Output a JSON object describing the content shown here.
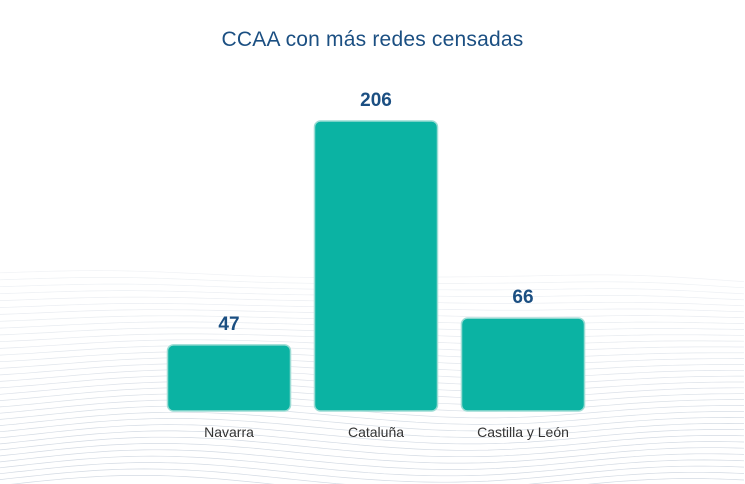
{
  "chart_data": {
    "type": "bar",
    "title": "CCAA con más redes censadas",
    "categories": [
      "Navarra",
      "Cataluña",
      "Castilla y León"
    ],
    "values": [
      47,
      206,
      66
    ],
    "data_labels": [
      "47",
      "206",
      "66"
    ],
    "xlabel": "",
    "ylabel": "",
    "ylim": [
      0,
      206
    ],
    "grid": false,
    "legend": "none",
    "bar_color": "#0bb3a3",
    "label_color": "#1b4f82"
  }
}
